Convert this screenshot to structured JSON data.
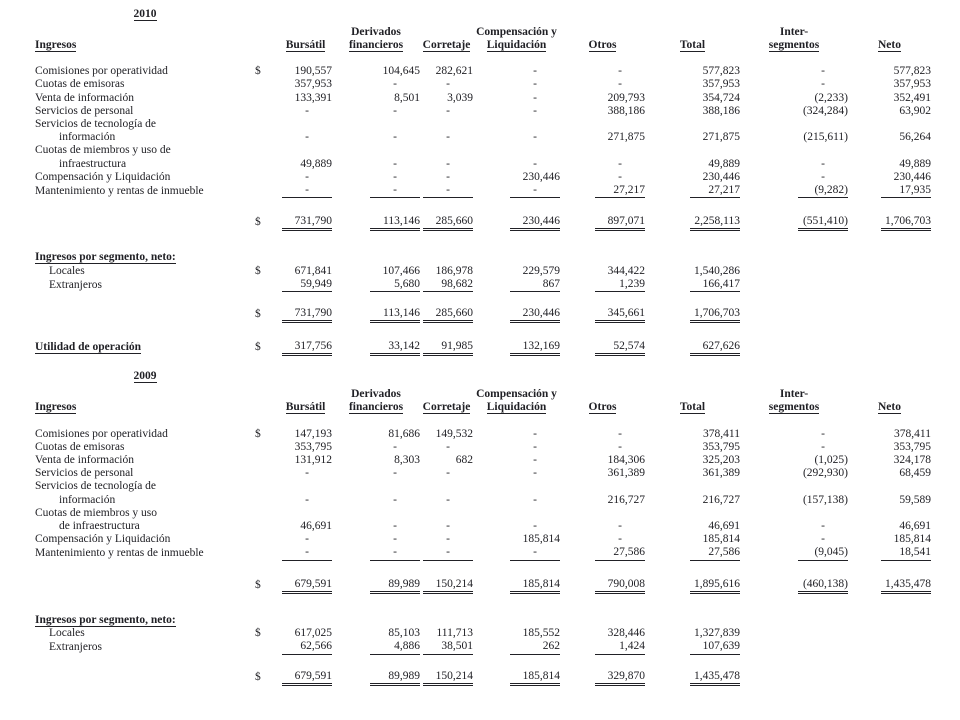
{
  "sections": [
    {
      "year": "2010",
      "row_header_label": "Ingresos",
      "currency_symbol": "$",
      "columns": [
        {
          "line1": "",
          "line2": "Bursátil"
        },
        {
          "line1": "Derivados",
          "line2": "financieros"
        },
        {
          "line1": "",
          "line2": "Corretaje"
        },
        {
          "line1": "Compensación y",
          "line2": "Liquidación"
        },
        {
          "line1": "",
          "line2": "Otros"
        },
        {
          "line1": "",
          "line2": "Total"
        },
        {
          "line1": "Inter-",
          "line2": "segmentos"
        },
        {
          "line1": "",
          "line2": "Neto"
        }
      ],
      "rows": [
        {
          "label_lines": [
            "Comisiones por operatividad"
          ],
          "dollar": "$",
          "underline": false,
          "values": [
            "190,557",
            "104,645",
            "282,621",
            "-",
            "-",
            "577,823",
            "-",
            "577,823"
          ]
        },
        {
          "label_lines": [
            "Cuotas de emisoras"
          ],
          "dollar": "",
          "underline": false,
          "values": [
            "357,953",
            "-",
            "-",
            "-",
            "-",
            "357,953",
            "-",
            "357,953"
          ]
        },
        {
          "label_lines": [
            "Venta de información"
          ],
          "dollar": "",
          "underline": false,
          "values": [
            "133,391",
            "8,501",
            "3,039",
            "-",
            "209,793",
            "354,724",
            "(2,233)",
            "352,491"
          ]
        },
        {
          "label_lines": [
            "Servicios de personal"
          ],
          "dollar": "",
          "underline": false,
          "values": [
            "-",
            "-",
            "-",
            "-",
            "388,186",
            "388,186",
            "(324,284)",
            "63,902"
          ]
        },
        {
          "label_lines": [
            "Servicios de tecnología de",
            "información"
          ],
          "dollar": "",
          "underline": false,
          "values": [
            "-",
            "-",
            "-",
            "-",
            "271,875",
            "271,875",
            "(215,611)",
            "56,264"
          ]
        },
        {
          "label_lines": [
            "Cuotas de miembros y uso de",
            "infraestructura"
          ],
          "dollar": "",
          "underline": false,
          "values": [
            "49,889",
            "-",
            "-",
            "-",
            "-",
            "49,889",
            "-",
            "49,889"
          ]
        },
        {
          "label_lines": [
            "Compensación y Liquidación"
          ],
          "dollar": "",
          "underline": false,
          "values": [
            "-",
            "-",
            "-",
            "230,446",
            "-",
            "230,446",
            "-",
            "230,446"
          ]
        },
        {
          "label_lines": [
            "Mantenimiento y rentas de inmueble"
          ],
          "dollar": "",
          "underline": true,
          "values": [
            "-",
            "-",
            "-",
            "-",
            "27,217",
            "27,217",
            "(9,282)",
            "17,935"
          ]
        }
      ],
      "grand_total": {
        "dollar": "$",
        "values": [
          "731,790",
          "113,146",
          "285,660",
          "230,446",
          "897,071",
          "2,258,113",
          "(551,410)",
          "1,706,703"
        ]
      },
      "segment_heading": "Ingresos por segmento, neto:",
      "segment_rows": [
        {
          "label": "Locales",
          "dollar": "$",
          "underline": false,
          "values": [
            "671,841",
            "107,466",
            "186,978",
            "229,579",
            "344,422",
            "1,540,286",
            "",
            ""
          ]
        },
        {
          "label": "Extranjeros",
          "dollar": "",
          "underline": true,
          "values": [
            "59,949",
            "5,680",
            "98,682",
            "867",
            "1,239",
            "166,417",
            "",
            ""
          ]
        }
      ],
      "segment_total": {
        "dollar": "$",
        "values": [
          "731,790",
          "113,146",
          "285,660",
          "230,446",
          "345,661",
          "1,706,703",
          "",
          ""
        ]
      },
      "utilidad": {
        "label": "Utilidad de operación",
        "dollar": "$",
        "values": [
          "317,756",
          "33,142",
          "91,985",
          "132,169",
          "52,574",
          "627,626",
          "",
          ""
        ]
      }
    },
    {
      "year": "2009",
      "row_header_label": "Ingresos",
      "currency_symbol": "$",
      "columns": [
        {
          "line1": "",
          "line2": "Bursátil"
        },
        {
          "line1": "Derivados",
          "line2": "financieros"
        },
        {
          "line1": "",
          "line2": "Corretaje"
        },
        {
          "line1": "Compensación y",
          "line2": "Liquidación"
        },
        {
          "line1": "",
          "line2": "Otros"
        },
        {
          "line1": "",
          "line2": "Total"
        },
        {
          "line1": "Inter-",
          "line2": "segmentos"
        },
        {
          "line1": "",
          "line2": "Neto"
        }
      ],
      "rows": [
        {
          "label_lines": [
            "Comisiones por operatividad"
          ],
          "dollar": "$",
          "underline": false,
          "values": [
            "147,193",
            "81,686",
            "149,532",
            "-",
            "-",
            "378,411",
            "-",
            "378,411"
          ]
        },
        {
          "label_lines": [
            "Cuotas de emisoras"
          ],
          "dollar": "",
          "underline": false,
          "values": [
            "353,795",
            "-",
            "-",
            "-",
            "-",
            "353,795",
            "-",
            "353,795"
          ]
        },
        {
          "label_lines": [
            "Venta de información"
          ],
          "dollar": "",
          "underline": false,
          "values": [
            "131,912",
            "8,303",
            "682",
            "-",
            "184,306",
            "325,203",
            "(1,025)",
            "324,178"
          ]
        },
        {
          "label_lines": [
            "Servicios de personal"
          ],
          "dollar": "",
          "underline": false,
          "values": [
            "-",
            "-",
            "-",
            "-",
            "361,389",
            "361,389",
            "(292,930)",
            "68,459"
          ]
        },
        {
          "label_lines": [
            "Servicios de tecnología de",
            "información"
          ],
          "dollar": "",
          "underline": false,
          "values": [
            "-",
            "-",
            "-",
            "-",
            "216,727",
            "216,727",
            "(157,138)",
            "59,589"
          ]
        },
        {
          "label_lines": [
            "Cuotas de miembros y uso",
            "de infraestructura"
          ],
          "dollar": "",
          "underline": false,
          "values": [
            "46,691",
            "-",
            "-",
            "-",
            "-",
            "46,691",
            "-",
            "46,691"
          ]
        },
        {
          "label_lines": [
            "Compensación y Liquidación"
          ],
          "dollar": "",
          "underline": false,
          "values": [
            "-",
            "-",
            "-",
            "185,814",
            "-",
            "185,814",
            "-",
            "185,814"
          ]
        },
        {
          "label_lines": [
            "Mantenimiento y rentas de inmueble"
          ],
          "dollar": "",
          "underline": true,
          "values": [
            "-",
            "-",
            "-",
            "-",
            "27,586",
            "27,586",
            "(9,045)",
            "18,541"
          ]
        }
      ],
      "grand_total": {
        "dollar": "$",
        "values": [
          "679,591",
          "89,989",
          "150,214",
          "185,814",
          "790,008",
          "1,895,616",
          "(460,138)",
          "1,435,478"
        ]
      },
      "segment_heading": "Ingresos por segmento, neto:",
      "segment_rows": [
        {
          "label": "Locales",
          "dollar": "$",
          "underline": false,
          "values": [
            "617,025",
            "85,103",
            "111,713",
            "185,552",
            "328,446",
            "1,327,839",
            "",
            ""
          ]
        },
        {
          "label": "Extranjeros",
          "dollar": "",
          "underline": true,
          "values": [
            "62,566",
            "4,886",
            "38,501",
            "262",
            "1,424",
            "107,639",
            "",
            ""
          ]
        }
      ],
      "segment_total": {
        "dollar": "$",
        "values": [
          "679,591",
          "89,989",
          "150,214",
          "185,814",
          "329,870",
          "1,435,478",
          "",
          ""
        ]
      },
      "utilidad": null
    }
  ]
}
